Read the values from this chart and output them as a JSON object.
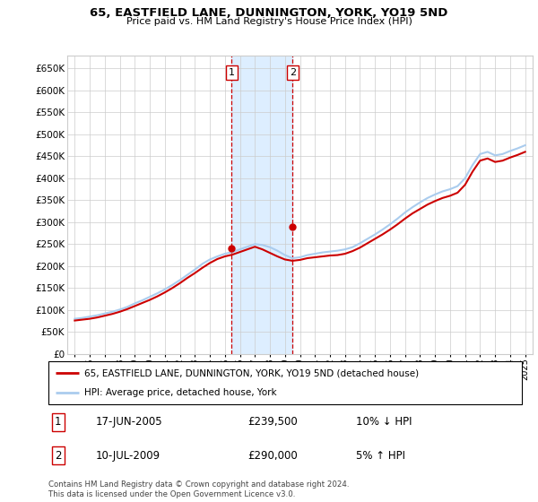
{
  "title": "65, EASTFIELD LANE, DUNNINGTON, YORK, YO19 5ND",
  "subtitle": "Price paid vs. HM Land Registry's House Price Index (HPI)",
  "legend_line1": "65, EASTFIELD LANE, DUNNINGTON, YORK, YO19 5ND (detached house)",
  "legend_line2": "HPI: Average price, detached house, York",
  "transaction1_date": "17-JUN-2005",
  "transaction1_price": "£239,500",
  "transaction1_hpi": "10% ↓ HPI",
  "transaction2_date": "10-JUL-2009",
  "transaction2_price": "£290,000",
  "transaction2_hpi": "5% ↑ HPI",
  "copyright": "Contains HM Land Registry data © Crown copyright and database right 2024.\nThis data is licensed under the Open Government Licence v3.0.",
  "hpi_color": "#aaccee",
  "price_color": "#cc0000",
  "shade_color": "#ddeeff",
  "vline_color": "#cc0000",
  "transaction1_x": 2005.46,
  "transaction2_x": 2009.52,
  "transaction1_y": 239500,
  "transaction2_y": 290000,
  "ylim_min": 0,
  "ylim_max": 680000,
  "xlim_min": 1994.5,
  "xlim_max": 2025.5,
  "yticks": [
    0,
    50000,
    100000,
    150000,
    200000,
    250000,
    300000,
    350000,
    400000,
    450000,
    500000,
    550000,
    600000,
    650000
  ],
  "xticks": [
    1995,
    1996,
    1997,
    1998,
    1999,
    2000,
    2001,
    2002,
    2003,
    2004,
    2005,
    2006,
    2007,
    2008,
    2009,
    2010,
    2011,
    2012,
    2013,
    2014,
    2015,
    2016,
    2017,
    2018,
    2019,
    2020,
    2021,
    2022,
    2023,
    2024,
    2025
  ],
  "hpi_data_x": [
    1995.0,
    1995.5,
    1996.0,
    1996.5,
    1997.0,
    1997.5,
    1998.0,
    1998.5,
    1999.0,
    1999.5,
    2000.0,
    2000.5,
    2001.0,
    2001.5,
    2002.0,
    2002.5,
    2003.0,
    2003.5,
    2004.0,
    2004.5,
    2005.0,
    2005.5,
    2006.0,
    2006.5,
    2007.0,
    2007.5,
    2008.0,
    2008.5,
    2009.0,
    2009.5,
    2010.0,
    2010.5,
    2011.0,
    2011.5,
    2012.0,
    2012.5,
    2013.0,
    2013.5,
    2014.0,
    2014.5,
    2015.0,
    2015.5,
    2016.0,
    2016.5,
    2017.0,
    2017.5,
    2018.0,
    2018.5,
    2019.0,
    2019.5,
    2020.0,
    2020.5,
    2021.0,
    2021.5,
    2022.0,
    2022.5,
    2023.0,
    2023.5,
    2024.0,
    2024.5,
    2025.0
  ],
  "hpi_data_y": [
    80000,
    82000,
    85000,
    88000,
    92000,
    96000,
    101000,
    107000,
    115000,
    122000,
    130000,
    138000,
    147000,
    157000,
    168000,
    180000,
    192000,
    205000,
    215000,
    222000,
    228000,
    232000,
    238000,
    244000,
    250000,
    248000,
    243000,
    235000,
    225000,
    218000,
    220000,
    225000,
    228000,
    231000,
    233000,
    235000,
    238000,
    243000,
    252000,
    262000,
    272000,
    283000,
    295000,
    308000,
    322000,
    334000,
    345000,
    355000,
    363000,
    370000,
    375000,
    382000,
    400000,
    430000,
    455000,
    460000,
    452000,
    455000,
    462000,
    468000,
    475000
  ],
  "price_data_x": [
    1995.0,
    1995.5,
    1996.0,
    1996.5,
    1997.0,
    1997.5,
    1998.0,
    1998.5,
    1999.0,
    1999.5,
    2000.0,
    2000.5,
    2001.0,
    2001.5,
    2002.0,
    2002.5,
    2003.0,
    2003.5,
    2004.0,
    2004.5,
    2005.0,
    2005.5,
    2006.0,
    2006.5,
    2007.0,
    2007.5,
    2008.0,
    2008.5,
    2009.0,
    2009.5,
    2010.0,
    2010.5,
    2011.0,
    2011.5,
    2012.0,
    2012.5,
    2013.0,
    2013.5,
    2014.0,
    2014.5,
    2015.0,
    2015.5,
    2016.0,
    2016.5,
    2017.0,
    2017.5,
    2018.0,
    2018.5,
    2019.0,
    2019.5,
    2020.0,
    2020.5,
    2021.0,
    2021.5,
    2022.0,
    2022.5,
    2023.0,
    2023.5,
    2024.0,
    2024.5,
    2025.0
  ],
  "price_data_y": [
    76000,
    78000,
    80000,
    83000,
    87000,
    91000,
    96000,
    102000,
    109000,
    116000,
    123000,
    131000,
    140000,
    150000,
    161000,
    173000,
    184000,
    196000,
    207000,
    216000,
    222000,
    226000,
    232000,
    238000,
    244000,
    238000,
    230000,
    222000,
    215000,
    212000,
    214000,
    218000,
    220000,
    222000,
    224000,
    225000,
    228000,
    234000,
    242000,
    252000,
    262000,
    272000,
    283000,
    295000,
    308000,
    320000,
    330000,
    340000,
    348000,
    355000,
    360000,
    367000,
    385000,
    415000,
    440000,
    445000,
    437000,
    440000,
    447000,
    453000,
    460000
  ]
}
